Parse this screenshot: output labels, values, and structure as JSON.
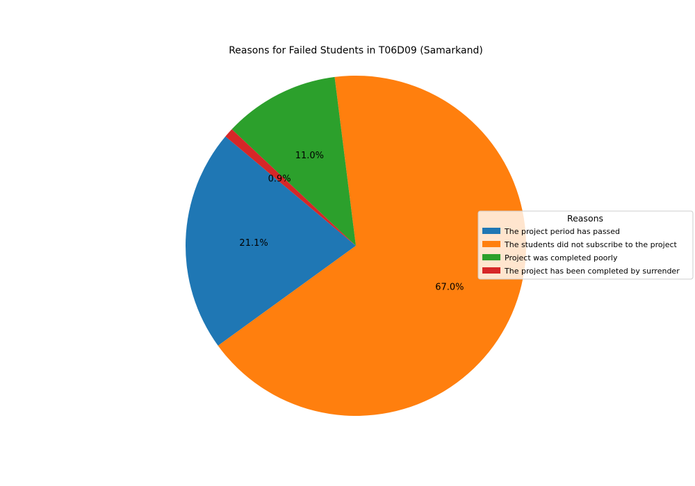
{
  "chart_data": {
    "type": "pie",
    "title": "Reasons for Failed Students in T06D09 (Samarkand)",
    "slices": [
      {
        "label": "The project period has passed",
        "percent": 21.1,
        "percent_label": "21.1%",
        "color": "#1f77b4"
      },
      {
        "label": "The students did not subscribe to the project",
        "percent": 67.0,
        "percent_label": "67.0%",
        "color": "#ff7f0e"
      },
      {
        "label": "Project was completed poorly",
        "percent": 11.0,
        "percent_label": "11.0%",
        "color": "#2ca02c"
      },
      {
        "label": "The project has been completed by surrender",
        "percent": 0.9,
        "percent_label": "0.9%",
        "color": "#d62728"
      }
    ],
    "start_angle_deg": 140,
    "direction": "counterclockwise",
    "legend": {
      "title": "Reasons",
      "placement": "center-right"
    }
  }
}
